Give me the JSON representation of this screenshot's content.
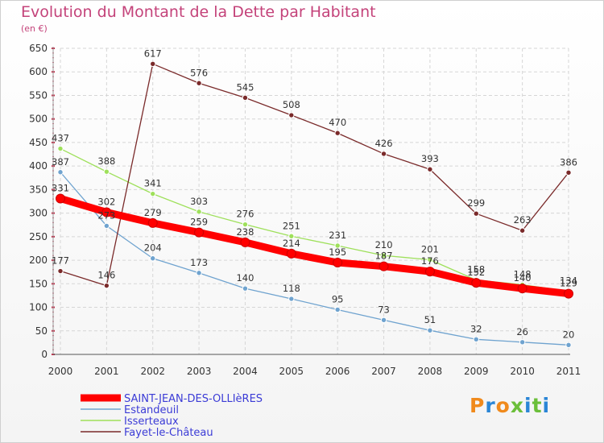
{
  "title": "Evolution du Montant de la Dette par Habitant",
  "subtitle": "(en €)",
  "logo": {
    "text": "Proxiti",
    "colors": [
      "#f08a1c",
      "#2b86d6",
      "#f08a1c",
      "#6bbf3a",
      "#2b86d6",
      "#6bbf3a",
      "#2b86d6"
    ]
  },
  "chart_data": {
    "type": "line",
    "title": "Evolution du Montant de la Dette par Habitant",
    "subtitle": "(en €)",
    "x": [
      "2000",
      "2001",
      "2002",
      "2003",
      "2004",
      "2005",
      "2006",
      "2007",
      "2008",
      "2009",
      "2010",
      "2011"
    ],
    "ylim": [
      0,
      650
    ],
    "yticks": [
      0,
      50,
      100,
      150,
      200,
      250,
      300,
      350,
      400,
      450,
      500,
      550,
      600,
      650
    ],
    "grid": true,
    "legend_position": "bottom-left",
    "series": [
      {
        "name": "SAINT-JEAN-DES-OLLIèRES",
        "color": "#ff0000",
        "thick": true,
        "values": [
          331,
          302,
          279,
          259,
          238,
          214,
          195,
          187,
          176,
          152,
          140,
          129
        ]
      },
      {
        "name": "Estandeuil",
        "color": "#6fa3cf",
        "thick": false,
        "values": [
          387,
          273,
          204,
          173,
          140,
          118,
          95,
          73,
          51,
          32,
          26,
          20
        ]
      },
      {
        "name": "Isserteaux",
        "color": "#9ee05a",
        "thick": false,
        "values": [
          437,
          388,
          341,
          303,
          276,
          251,
          231,
          210,
          201,
          158,
          148,
          134
        ]
      },
      {
        "name": "Fayet-le-Château",
        "color": "#7a2a2a",
        "thick": false,
        "values": [
          177,
          146,
          617,
          576,
          545,
          508,
          470,
          426,
          393,
          299,
          263,
          386
        ]
      }
    ]
  }
}
